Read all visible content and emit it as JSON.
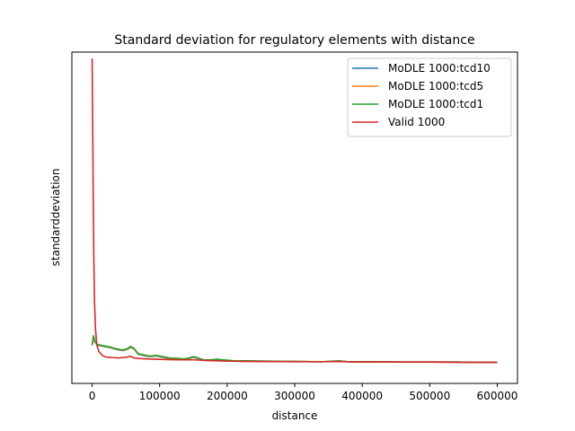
{
  "chart_data": {
    "type": "line",
    "title": "Standard deviation for regulatory elements with distance",
    "xlabel": "distance",
    "ylabel": "standarddeviation",
    "xlim": [
      -30000,
      630000
    ],
    "ylim": [
      -0.02,
      1.02
    ],
    "x_ticks": [
      0,
      100000,
      200000,
      300000,
      400000,
      500000,
      600000
    ],
    "x_tick_labels": [
      "0",
      "100000",
      "200000",
      "300000",
      "400000",
      "500000",
      "600000"
    ],
    "y_ticks_shown": false,
    "grid": false,
    "legend_position": "top-right",
    "series": [
      {
        "name": "MoDLE 1000:tcd10",
        "color": "#1f77b4",
        "points": [
          [
            0,
            0.1
          ],
          [
            2000,
            0.125
          ],
          [
            4000,
            0.11
          ],
          [
            8000,
            0.1
          ],
          [
            15000,
            0.097
          ],
          [
            25000,
            0.093
          ],
          [
            35000,
            0.087
          ],
          [
            45000,
            0.083
          ],
          [
            52000,
            0.086
          ],
          [
            57000,
            0.093
          ],
          [
            62000,
            0.088
          ],
          [
            68000,
            0.072
          ],
          [
            75000,
            0.068
          ],
          [
            85000,
            0.064
          ],
          [
            95000,
            0.066
          ],
          [
            105000,
            0.062
          ],
          [
            115000,
            0.058
          ],
          [
            125000,
            0.057
          ],
          [
            135000,
            0.055
          ],
          [
            142000,
            0.057
          ],
          [
            150000,
            0.062
          ],
          [
            157000,
            0.058
          ],
          [
            165000,
            0.052
          ],
          [
            175000,
            0.052
          ],
          [
            185000,
            0.054
          ],
          [
            195000,
            0.052
          ],
          [
            210000,
            0.05
          ],
          [
            230000,
            0.05
          ],
          [
            260000,
            0.049
          ],
          [
            300000,
            0.049
          ],
          [
            340000,
            0.048
          ],
          [
            365000,
            0.05
          ],
          [
            380000,
            0.048
          ],
          [
            420000,
            0.048
          ],
          [
            460000,
            0.047
          ],
          [
            500000,
            0.047
          ],
          [
            540000,
            0.047
          ],
          [
            570000,
            0.046
          ],
          [
            600000,
            0.046
          ]
        ]
      },
      {
        "name": "MoDLE 1000:tcd5",
        "color": "#ff7f0e",
        "points": [
          [
            0,
            0.1
          ],
          [
            2000,
            0.127
          ],
          [
            4000,
            0.11
          ],
          [
            8000,
            0.101
          ],
          [
            15000,
            0.098
          ],
          [
            25000,
            0.094
          ],
          [
            35000,
            0.088
          ],
          [
            45000,
            0.084
          ],
          [
            52000,
            0.087
          ],
          [
            57000,
            0.094
          ],
          [
            62000,
            0.089
          ],
          [
            68000,
            0.073
          ],
          [
            75000,
            0.069
          ],
          [
            85000,
            0.065
          ],
          [
            95000,
            0.067
          ],
          [
            105000,
            0.063
          ],
          [
            115000,
            0.059
          ],
          [
            125000,
            0.058
          ],
          [
            135000,
            0.056
          ],
          [
            142000,
            0.058
          ],
          [
            150000,
            0.063
          ],
          [
            157000,
            0.059
          ],
          [
            165000,
            0.053
          ],
          [
            175000,
            0.053
          ],
          [
            185000,
            0.055
          ],
          [
            195000,
            0.053
          ],
          [
            210000,
            0.05
          ],
          [
            230000,
            0.05
          ],
          [
            260000,
            0.049
          ],
          [
            300000,
            0.049
          ],
          [
            340000,
            0.048
          ],
          [
            365000,
            0.05
          ],
          [
            380000,
            0.048
          ],
          [
            420000,
            0.048
          ],
          [
            460000,
            0.047
          ],
          [
            500000,
            0.047
          ],
          [
            540000,
            0.047
          ],
          [
            570000,
            0.046
          ],
          [
            600000,
            0.046
          ]
        ]
      },
      {
        "name": "MoDLE 1000:tcd1",
        "color": "#2ca02c",
        "points": [
          [
            0,
            0.1
          ],
          [
            2000,
            0.13
          ],
          [
            4000,
            0.112
          ],
          [
            8000,
            0.102
          ],
          [
            15000,
            0.099
          ],
          [
            25000,
            0.095
          ],
          [
            35000,
            0.089
          ],
          [
            45000,
            0.085
          ],
          [
            52000,
            0.089
          ],
          [
            57000,
            0.096
          ],
          [
            62000,
            0.09
          ],
          [
            68000,
            0.074
          ],
          [
            75000,
            0.07
          ],
          [
            85000,
            0.066
          ],
          [
            95000,
            0.068
          ],
          [
            105000,
            0.064
          ],
          [
            115000,
            0.06
          ],
          [
            125000,
            0.059
          ],
          [
            135000,
            0.057
          ],
          [
            142000,
            0.059
          ],
          [
            150000,
            0.064
          ],
          [
            157000,
            0.06
          ],
          [
            165000,
            0.054
          ],
          [
            175000,
            0.054
          ],
          [
            185000,
            0.056
          ],
          [
            195000,
            0.054
          ],
          [
            210000,
            0.051
          ],
          [
            230000,
            0.051
          ],
          [
            260000,
            0.05
          ],
          [
            300000,
            0.049
          ],
          [
            340000,
            0.048
          ],
          [
            365000,
            0.051
          ],
          [
            380000,
            0.048
          ],
          [
            420000,
            0.048
          ],
          [
            460000,
            0.047
          ],
          [
            500000,
            0.047
          ],
          [
            540000,
            0.047
          ],
          [
            570000,
            0.046
          ],
          [
            600000,
            0.046
          ]
        ]
      },
      {
        "name": "Valid 1000",
        "color": "#d62728",
        "points": [
          [
            0,
            1.0
          ],
          [
            800,
            0.8
          ],
          [
            1500,
            0.6
          ],
          [
            2500,
            0.38
          ],
          [
            3500,
            0.24
          ],
          [
            5000,
            0.15
          ],
          [
            7000,
            0.1
          ],
          [
            10000,
            0.08
          ],
          [
            15000,
            0.068
          ],
          [
            20000,
            0.063
          ],
          [
            30000,
            0.061
          ],
          [
            40000,
            0.06
          ],
          [
            50000,
            0.062
          ],
          [
            57000,
            0.065
          ],
          [
            62000,
            0.06
          ],
          [
            70000,
            0.058
          ],
          [
            80000,
            0.057
          ],
          [
            95000,
            0.056
          ],
          [
            110000,
            0.055
          ],
          [
            130000,
            0.054
          ],
          [
            150000,
            0.054
          ],
          [
            170000,
            0.052
          ],
          [
            200000,
            0.05
          ],
          [
            230000,
            0.049
          ],
          [
            260000,
            0.049
          ],
          [
            300000,
            0.048
          ],
          [
            340000,
            0.048
          ],
          [
            365000,
            0.049
          ],
          [
            390000,
            0.047
          ],
          [
            420000,
            0.047
          ],
          [
            460000,
            0.047
          ],
          [
            500000,
            0.047
          ],
          [
            540000,
            0.046
          ],
          [
            570000,
            0.046
          ],
          [
            600000,
            0.046
          ]
        ]
      }
    ]
  }
}
